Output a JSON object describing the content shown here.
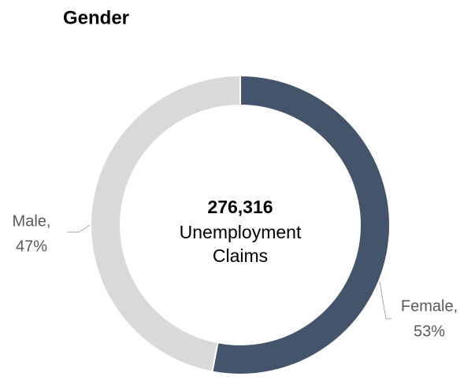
{
  "chart_data": {
    "type": "donut",
    "title": "Gender",
    "categories": [
      "Female,",
      "Male,"
    ],
    "values": [
      53,
      47
    ],
    "value_labels": [
      "53%",
      "47%"
    ],
    "colors": [
      "#44546a",
      "#d9d9d9"
    ],
    "center_text": [
      "276,316",
      "Unemployment",
      "Claims"
    ]
  }
}
